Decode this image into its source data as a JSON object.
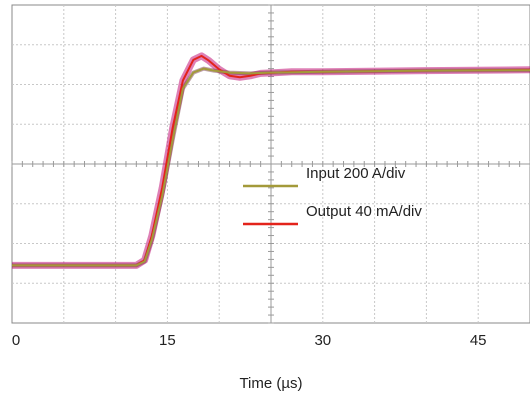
{
  "chart_data": {
    "type": "line",
    "xlabel": "Time (µs)",
    "ylabel": "",
    "xlim": [
      0,
      50
    ],
    "ylim": [
      -4,
      4
    ],
    "x_ticks": [
      0,
      15,
      30,
      45
    ],
    "x_tick_labels": [
      "0",
      "15",
      "30",
      "45"
    ],
    "grid": true,
    "legend_position": "center-right",
    "series": [
      {
        "name": "Input 200 A/div",
        "color": "#a39a3a",
        "x": [
          0,
          12.0,
          12.8,
          13.5,
          14.5,
          15.5,
          16.5,
          17.5,
          18.5,
          19.5,
          21,
          23,
          25,
          30,
          40,
          50
        ],
        "y": [
          -2.55,
          -2.55,
          -2.45,
          -1.9,
          -0.8,
          0.6,
          1.9,
          2.3,
          2.4,
          2.35,
          2.3,
          2.28,
          2.3,
          2.32,
          2.35,
          2.36
        ]
      },
      {
        "name": "Output 40 mA/div",
        "color": "#e3231b",
        "x": [
          0,
          12.0,
          12.8,
          13.5,
          14.5,
          15.5,
          16.5,
          17.5,
          18.3,
          19.0,
          20.0,
          21.0,
          22.0,
          23.0,
          24.0,
          25.5,
          27,
          30,
          40,
          50
        ],
        "y": [
          -2.55,
          -2.55,
          -2.42,
          -1.8,
          -0.6,
          0.9,
          2.1,
          2.62,
          2.72,
          2.6,
          2.38,
          2.22,
          2.18,
          2.22,
          2.28,
          2.3,
          2.32,
          2.32,
          2.35,
          2.37
        ]
      }
    ]
  }
}
